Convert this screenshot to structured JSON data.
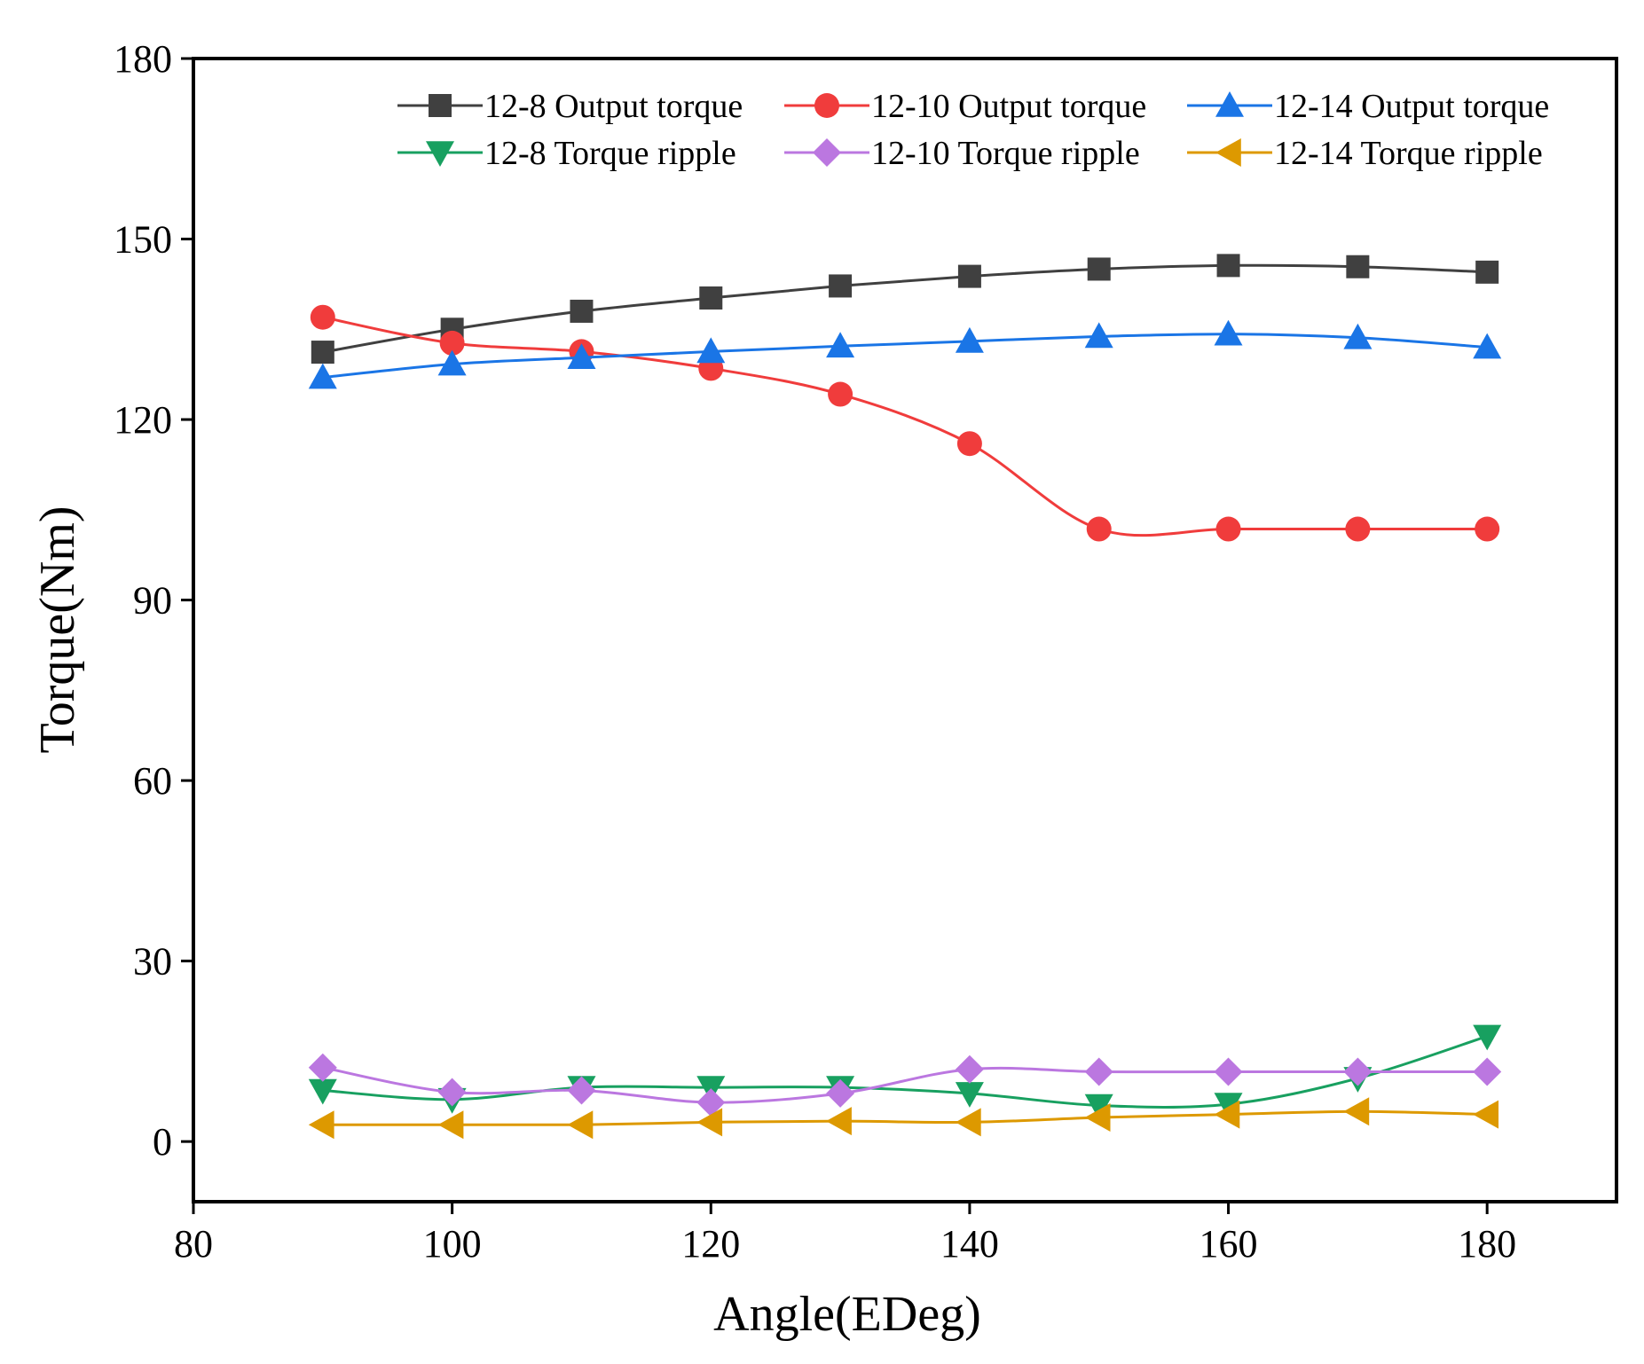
{
  "chart_data": {
    "type": "line",
    "title": "",
    "xlabel": "Angle(EDeg)",
    "ylabel": "Torque(Nm)",
    "xlim": [
      80,
      190
    ],
    "ylim": [
      -10,
      180
    ],
    "xticks": [
      80,
      100,
      120,
      140,
      160,
      180
    ],
    "yticks": [
      0,
      30,
      60,
      90,
      120,
      150,
      180
    ],
    "grid": false,
    "legend_position": "top-right",
    "x": [
      90,
      100,
      110,
      120,
      130,
      140,
      150,
      160,
      170,
      180
    ],
    "series": [
      {
        "name": "12-8 Output torque",
        "color": "#404040",
        "marker": "square",
        "values": [
          131.2,
          135.0,
          138.0,
          140.2,
          142.2,
          143.8,
          145.0,
          145.6,
          145.4,
          144.5
        ]
      },
      {
        "name": "12-10 Output torque",
        "color": "#f03c3c",
        "marker": "circle",
        "values": [
          137.0,
          132.7,
          131.3,
          128.5,
          124.2,
          116.0,
          101.8,
          101.8,
          101.8,
          101.8
        ]
      },
      {
        "name": "12-14 Output torque",
        "color": "#1a75e6",
        "marker": "triangle-up",
        "values": [
          127.0,
          129.2,
          130.3,
          131.3,
          132.2,
          133.0,
          133.8,
          134.2,
          133.6,
          132.0
        ]
      },
      {
        "name": "12-8 Torque ripple",
        "color": "#18a060",
        "marker": "triangle-down",
        "values": [
          8.5,
          7.0,
          9.0,
          9.0,
          9.0,
          8.0,
          6.0,
          6.2,
          10.5,
          17.5
        ]
      },
      {
        "name": "12-10 Torque ripple",
        "color": "#bb77e0",
        "marker": "diamond",
        "values": [
          12.3,
          8.2,
          8.5,
          6.5,
          8.0,
          12.0,
          11.6,
          11.6,
          11.6,
          11.6
        ]
      },
      {
        "name": "12-14 Torque ripple",
        "color": "#dd9900",
        "marker": "triangle-left",
        "values": [
          2.8,
          2.8,
          2.8,
          3.2,
          3.4,
          3.2,
          4.0,
          4.5,
          5.0,
          4.5
        ]
      }
    ]
  }
}
